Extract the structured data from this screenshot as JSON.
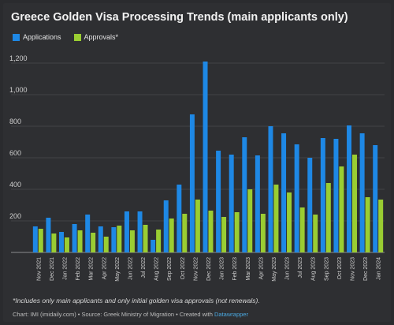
{
  "chart_data": {
    "type": "bar",
    "title": "Greece Golden Visa Processing Trends (main applicants only)",
    "categories": [
      "Nov 2021",
      "Dec 2021",
      "Jan 2022",
      "Feb 2022",
      "Mar 2022",
      "Apr 2022",
      "May 2022",
      "Jun 2022",
      "Jul 2022",
      "Aug 2022",
      "Sep 2022",
      "Oct 2022",
      "Nov 2022",
      "Dec 2022",
      "Jan 2023",
      "Feb 2023",
      "Mar 2023",
      "Apr 2023",
      "May 2023",
      "Jun 2023",
      "Jul 2023",
      "Aug 2023",
      "Sep 2023",
      "Oct 2023",
      "Nov 2023",
      "Dec 2023",
      "Jan 2024"
    ],
    "series": [
      {
        "name": "Applications",
        "color": "#1e88e5",
        "values": [
          165,
          220,
          130,
          180,
          240,
          165,
          160,
          260,
          260,
          80,
          330,
          430,
          875,
          1210,
          645,
          620,
          730,
          615,
          800,
          755,
          685,
          600,
          725,
          720,
          805,
          755,
          680
        ]
      },
      {
        "name": "Approvals*",
        "color": "#9acd32",
        "values": [
          150,
          120,
          95,
          140,
          125,
          100,
          170,
          140,
          175,
          145,
          215,
          245,
          335,
          265,
          225,
          255,
          400,
          245,
          430,
          380,
          285,
          240,
          440,
          545,
          620,
          350,
          335
        ]
      }
    ],
    "yticks": [
      200,
      400,
      600,
      800,
      "1,000",
      "1,200"
    ],
    "ylim": [
      0,
      1300
    ],
    "grid": true,
    "legend_position": "top-left"
  },
  "footnote": "*Includes only main applicants and only initial golden visa approvals (not renewals).",
  "credits": {
    "text": "Chart: IMI (imidaily.com) • Source: Greek Ministry of Migration • Created with ",
    "link": "Datawrapper"
  }
}
